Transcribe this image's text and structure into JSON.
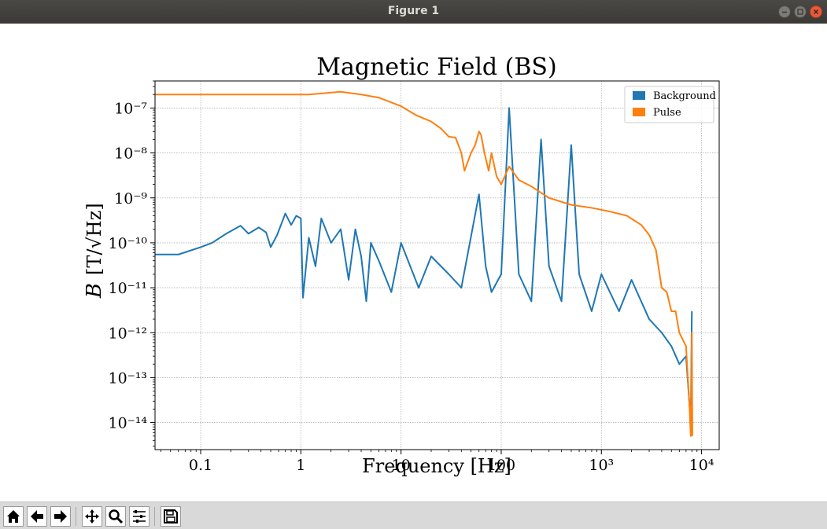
{
  "window": {
    "title": "Figure 1"
  },
  "toolbar": {
    "buttons": [
      "home-icon",
      "back-icon",
      "forward-icon",
      "pan-icon",
      "zoom-icon",
      "configure-subplots-icon",
      "save-icon"
    ]
  },
  "colors": {
    "background_series": "#1f77b4",
    "pulse_series": "#ff7f0e",
    "grid": "#b0b0b0"
  },
  "chart_data": {
    "type": "line",
    "title": "Magnetic Field (BS)",
    "xlabel": "Frequency [Hz]",
    "ylabel_prefix": "B",
    "ylabel_unit": "[T/√Hz]",
    "xscale": "log",
    "yscale": "log",
    "xlim": [
      0.035,
      15000
    ],
    "ylim": [
      2.5e-15,
      4e-07
    ],
    "grid": true,
    "legend_position": "top-right",
    "x_ticks": [
      {
        "label": "0.1",
        "value": 0.1
      },
      {
        "label": "1",
        "value": 1
      },
      {
        "label": "10",
        "value": 10
      },
      {
        "label": "100",
        "value": 100
      },
      {
        "label": "10³",
        "value": 1000
      },
      {
        "label": "10⁴",
        "value": 10000
      }
    ],
    "y_ticks": [
      {
        "label": "10⁻⁷",
        "value": 1e-07
      },
      {
        "label": "10⁻⁸",
        "value": 1e-08
      },
      {
        "label": "10⁻⁹",
        "value": 1e-09
      },
      {
        "label": "10⁻¹⁰",
        "value": 1e-10
      },
      {
        "label": "10⁻¹¹",
        "value": 1e-11
      },
      {
        "label": "10⁻¹²",
        "value": 1e-12
      },
      {
        "label": "10⁻¹³",
        "value": 1e-13
      },
      {
        "label": "10⁻¹⁴",
        "value": 1e-14
      }
    ],
    "series": [
      {
        "name": "Background",
        "color": "#1f77b4",
        "points": [
          [
            0.035,
            5.5e-11
          ],
          [
            0.06,
            5.5e-11
          ],
          [
            0.1,
            8e-11
          ],
          [
            0.13,
            1e-10
          ],
          [
            0.18,
            1.6e-10
          ],
          [
            0.25,
            2.4e-10
          ],
          [
            0.3,
            1.6e-10
          ],
          [
            0.38,
            2.2e-10
          ],
          [
            0.45,
            1.7e-10
          ],
          [
            0.5,
            8e-11
          ],
          [
            0.58,
            1.5e-10
          ],
          [
            0.7,
            4.5e-10
          ],
          [
            0.8,
            2.5e-10
          ],
          [
            0.9,
            4e-10
          ],
          [
            1.0,
            3.5e-10
          ],
          [
            1.05,
            6e-12
          ],
          [
            1.2,
            1.3e-10
          ],
          [
            1.4,
            3e-11
          ],
          [
            1.6,
            3.5e-10
          ],
          [
            2.0,
            1e-10
          ],
          [
            2.5,
            2e-10
          ],
          [
            3.0,
            1.5e-11
          ],
          [
            3.5,
            2e-10
          ],
          [
            4.0,
            5e-11
          ],
          [
            4.5,
            5e-12
          ],
          [
            5.0,
            1e-10
          ],
          [
            6.0,
            4e-11
          ],
          [
            8.0,
            8e-12
          ],
          [
            10.0,
            1e-10
          ],
          [
            15.0,
            1e-11
          ],
          [
            20.0,
            5e-11
          ],
          [
            30.0,
            2e-11
          ],
          [
            40.0,
            1e-11
          ],
          [
            60.0,
            1.2e-09
          ],
          [
            70.0,
            3e-11
          ],
          [
            80.0,
            8e-12
          ],
          [
            100.0,
            2e-11
          ],
          [
            120.0,
            1e-07
          ],
          [
            150.0,
            2e-11
          ],
          [
            200.0,
            5e-12
          ],
          [
            250.0,
            2e-08
          ],
          [
            300.0,
            3e-11
          ],
          [
            400.0,
            5e-12
          ],
          [
            500.0,
            1.5e-08
          ],
          [
            600.0,
            2e-11
          ],
          [
            800.0,
            3e-12
          ],
          [
            1000.0,
            2e-11
          ],
          [
            1500.0,
            3e-12
          ],
          [
            2000.0,
            1.5e-11
          ],
          [
            3000.0,
            2e-12
          ],
          [
            4000.0,
            1e-12
          ],
          [
            5000.0,
            5e-13
          ],
          [
            6000.0,
            2e-13
          ],
          [
            7000.0,
            3e-13
          ],
          [
            7800.0,
            1e-14
          ],
          [
            8000.0,
            3e-12
          ]
        ]
      },
      {
        "name": "Pulse",
        "color": "#ff7f0e",
        "points": [
          [
            0.035,
            2e-07
          ],
          [
            0.1,
            2e-07
          ],
          [
            0.3,
            2e-07
          ],
          [
            1.2,
            2e-07
          ],
          [
            2.5,
            2.3e-07
          ],
          [
            4.0,
            2e-07
          ],
          [
            6.0,
            1.7e-07
          ],
          [
            10.0,
            1.1e-07
          ],
          [
            14.0,
            7e-08
          ],
          [
            20.0,
            5e-08
          ],
          [
            25.0,
            3.5e-08
          ],
          [
            30.0,
            2.3e-08
          ],
          [
            35.0,
            2.2e-08
          ],
          [
            40.0,
            1e-08
          ],
          [
            43.0,
            4e-09
          ],
          [
            50.0,
            1e-08
          ],
          [
            55.0,
            1.5e-08
          ],
          [
            60.0,
            3e-08
          ],
          [
            63.0,
            2.5e-08
          ],
          [
            68.0,
            1e-08
          ],
          [
            75.0,
            4e-09
          ],
          [
            80.0,
            1e-08
          ],
          [
            90.0,
            3e-09
          ],
          [
            100.0,
            2e-09
          ],
          [
            120.0,
            5e-09
          ],
          [
            150.0,
            2.5e-09
          ],
          [
            200.0,
            1.8e-09
          ],
          [
            300.0,
            1e-09
          ],
          [
            500.0,
            7e-10
          ],
          [
            800.0,
            6e-10
          ],
          [
            1200.0,
            5e-10
          ],
          [
            1800.0,
            4e-10
          ],
          [
            2500.0,
            2.5e-10
          ],
          [
            3000.0,
            1.5e-10
          ],
          [
            3500.0,
            7e-11
          ],
          [
            4000.0,
            1e-11
          ],
          [
            4500.0,
            8e-12
          ],
          [
            5000.0,
            3e-12
          ],
          [
            5500.0,
            3e-12
          ],
          [
            6000.0,
            1e-12
          ],
          [
            7000.0,
            5e-13
          ],
          [
            7600.0,
            2e-14
          ],
          [
            7800.0,
            5e-15
          ],
          [
            8000.0,
            1e-12
          ],
          [
            8100.0,
            5e-15
          ]
        ]
      }
    ]
  }
}
